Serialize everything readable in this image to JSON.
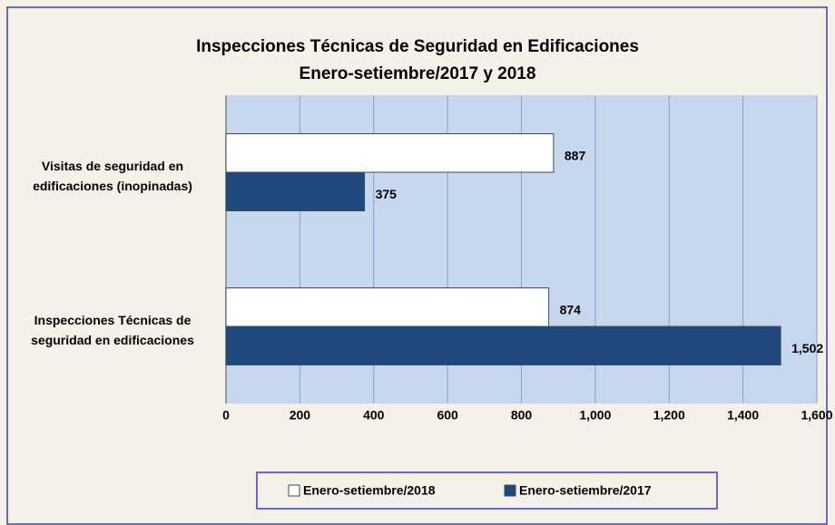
{
  "chart_data": {
    "type": "bar",
    "orientation": "horizontal",
    "title": "Inspecciones Técnicas de Seguridad en Edificaciones",
    "subtitle": "Enero-setiembre/2017 y 2018",
    "categories": [
      "Visitas de seguridad en edificaciones (inopinadas)",
      "Inspecciones Técnicas de seguridad en edificaciones"
    ],
    "series": [
      {
        "name": "Enero-setiembre/2018",
        "color": "#ffffff",
        "values": [
          887,
          874
        ]
      },
      {
        "name": "Enero-setiembre/2017",
        "color": "#1f497d",
        "values": [
          375,
          1502
        ],
        "value_labels": [
          "375",
          "1,502"
        ]
      }
    ],
    "xlim": [
      0,
      1600
    ],
    "xticks": [
      0,
      200,
      400,
      600,
      800,
      {
        "value": 1000,
        "label": "1,000"
      },
      {
        "value": 1200,
        "label": "1,200"
      },
      {
        "value": 1400,
        "label": "1,400"
      },
      {
        "value": 1600,
        "label": "1,600"
      }
    ],
    "grid": true,
    "legend": "bottom"
  }
}
